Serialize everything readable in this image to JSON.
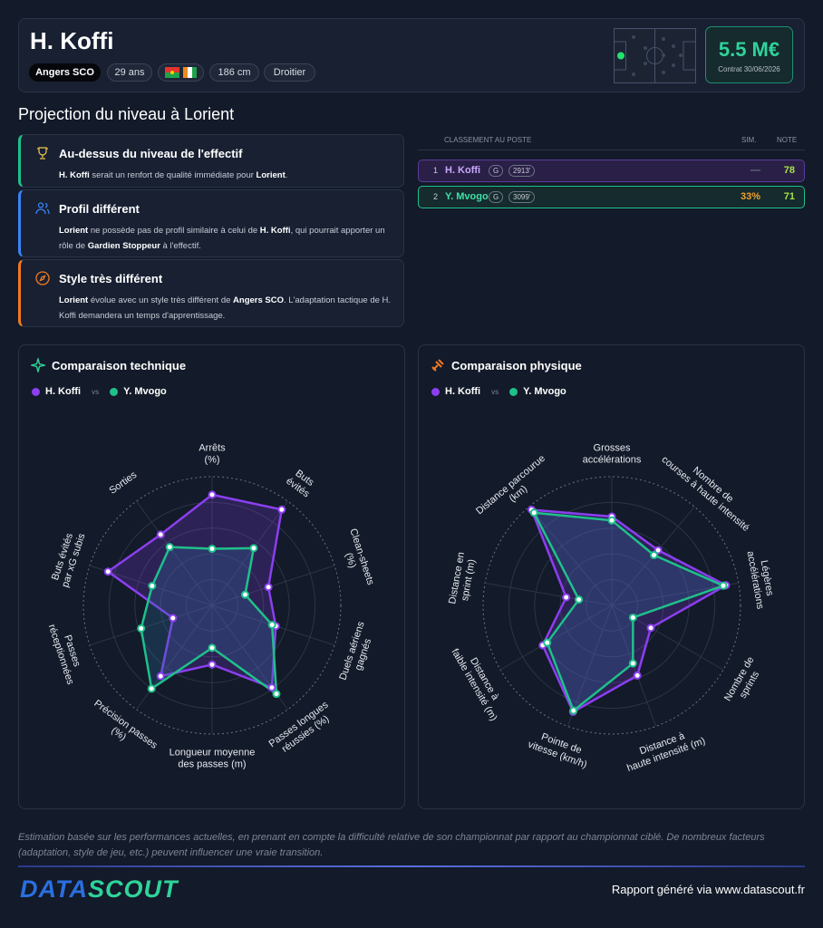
{
  "header": {
    "name": "H. Koffi",
    "club": "Angers SCO",
    "age": "29 ans",
    "height": "186 cm",
    "foot": "Droitier",
    "value": "5.5 M€",
    "contract": "Contrat 30/06/2026"
  },
  "section_title": "Projection du niveau à Lorient",
  "insights": [
    {
      "title": "Au-dessus du niveau de l'effectif",
      "color": "#1fc08a",
      "parts": [
        {
          "text": "H. Koffi",
          "bold": true
        },
        {
          "text": " serait un renfort de qualité immédiate pour "
        },
        {
          "text": "Lorient",
          "bold": true
        },
        {
          "text": "."
        }
      ]
    },
    {
      "title": "Profil différent",
      "color": "#3b82f6",
      "parts": [
        {
          "text": "Lorient",
          "bold": true
        },
        {
          "text": " ne possède pas de profil similaire à celui de "
        },
        {
          "text": "H. Koffi",
          "bold": true
        },
        {
          "text": ", qui pourrait apporter un rôle de "
        },
        {
          "text": "Gardien Stoppeur",
          "bold": true
        },
        {
          "text": " à l'effectif."
        }
      ]
    },
    {
      "title": "Style très différent",
      "color": "#f07a22",
      "parts": [
        {
          "text": "Lorient",
          "bold": true
        },
        {
          "text": " évolue avec un style très différent de "
        },
        {
          "text": "Angers SCO",
          "bold": true
        },
        {
          "text": ". L'adaptation tactique de H. Koffi demandera un temps d'apprentissage."
        }
      ]
    }
  ],
  "ranking": {
    "title": "CLASSEMENT AU POSTE",
    "columns": [
      "SIM.",
      "NOTE"
    ],
    "rows": [
      {
        "rank": 1,
        "name": "H. Koffi",
        "position": "G",
        "minutes": "2913'",
        "sim": "—",
        "note": 78
      },
      {
        "rank": 2,
        "name": "Y. Mvogo",
        "position": "G",
        "minutes": "3099'",
        "sim": "33%",
        "note": 71
      }
    ]
  },
  "chart_data": [
    {
      "type": "radar",
      "title": "Comparaison technique",
      "vs": "vs",
      "rlim": [
        0,
        100
      ],
      "rticks": [
        20,
        40,
        60,
        80,
        100
      ],
      "categories": [
        [
          "Arrêts",
          "(%)"
        ],
        [
          "Buts",
          "évités"
        ],
        [
          "Clean-sheets",
          "(%)"
        ],
        [
          "Duels aériens",
          "gagnés"
        ],
        [
          "Passes longues",
          "réussies (%)"
        ],
        [
          "Longueur moyenne",
          "des passes (m)"
        ],
        [
          "Précision passes",
          "(%)"
        ],
        [
          "Passes",
          "réceptionnées"
        ],
        [
          "Buts évités",
          "par xG subis"
        ],
        [
          "Sorties"
        ]
      ],
      "series": [
        {
          "name": "H. Koffi",
          "color": "#8b3ff0",
          "values": [
            86,
            92,
            46,
            52,
            79,
            46,
            68,
            32,
            85,
            68
          ]
        },
        {
          "name": "Y. Mvogo",
          "color": "#1fc08a",
          "values": [
            44,
            55,
            27,
            49,
            85,
            33,
            80,
            58,
            49,
            56
          ]
        }
      ]
    },
    {
      "type": "radar",
      "title": "Comparaison physique",
      "vs": "vs",
      "rlim": [
        0,
        100
      ],
      "rticks": [
        20,
        40,
        60,
        80,
        100
      ],
      "categories": [
        [
          "Grosses",
          "accélérations"
        ],
        [
          "Nombre de",
          "courses à haute intensité"
        ],
        [
          "Légères",
          "accélérations"
        ],
        [
          "Nombre de",
          "sprints"
        ],
        [
          "Distance à",
          "haute intensité (m)"
        ],
        [
          "Pointe de",
          "vitesse (km/h)"
        ],
        [
          "Distance à",
          "faible intensité (m)"
        ],
        [
          "Distance en",
          "sprint (m)"
        ],
        [
          "Distance parcourue",
          "(km)"
        ]
      ],
      "series": [
        {
          "name": "H. Koffi",
          "color": "#8b3ff0",
          "values": [
            69,
            56,
            90,
            35,
            58,
            88,
            62,
            36,
            97
          ]
        },
        {
          "name": "Y. Mvogo",
          "color": "#1fc08a",
          "values": [
            66,
            51,
            88,
            19,
            48,
            87,
            58,
            26,
            94
          ]
        }
      ]
    }
  ],
  "footer": {
    "disclaimer": "Estimation basée sur les performances actuelles, en prenant en compte la difficulté relative de son championnat par rapport au championnat ciblé. De nombreux facteurs (adaptation, style de jeu, etc.) peuvent influencer une vraie transition.",
    "logo_a": "DATA",
    "logo_b": "SCOUT",
    "credit": "Rapport généré via www.datascout.fr"
  }
}
